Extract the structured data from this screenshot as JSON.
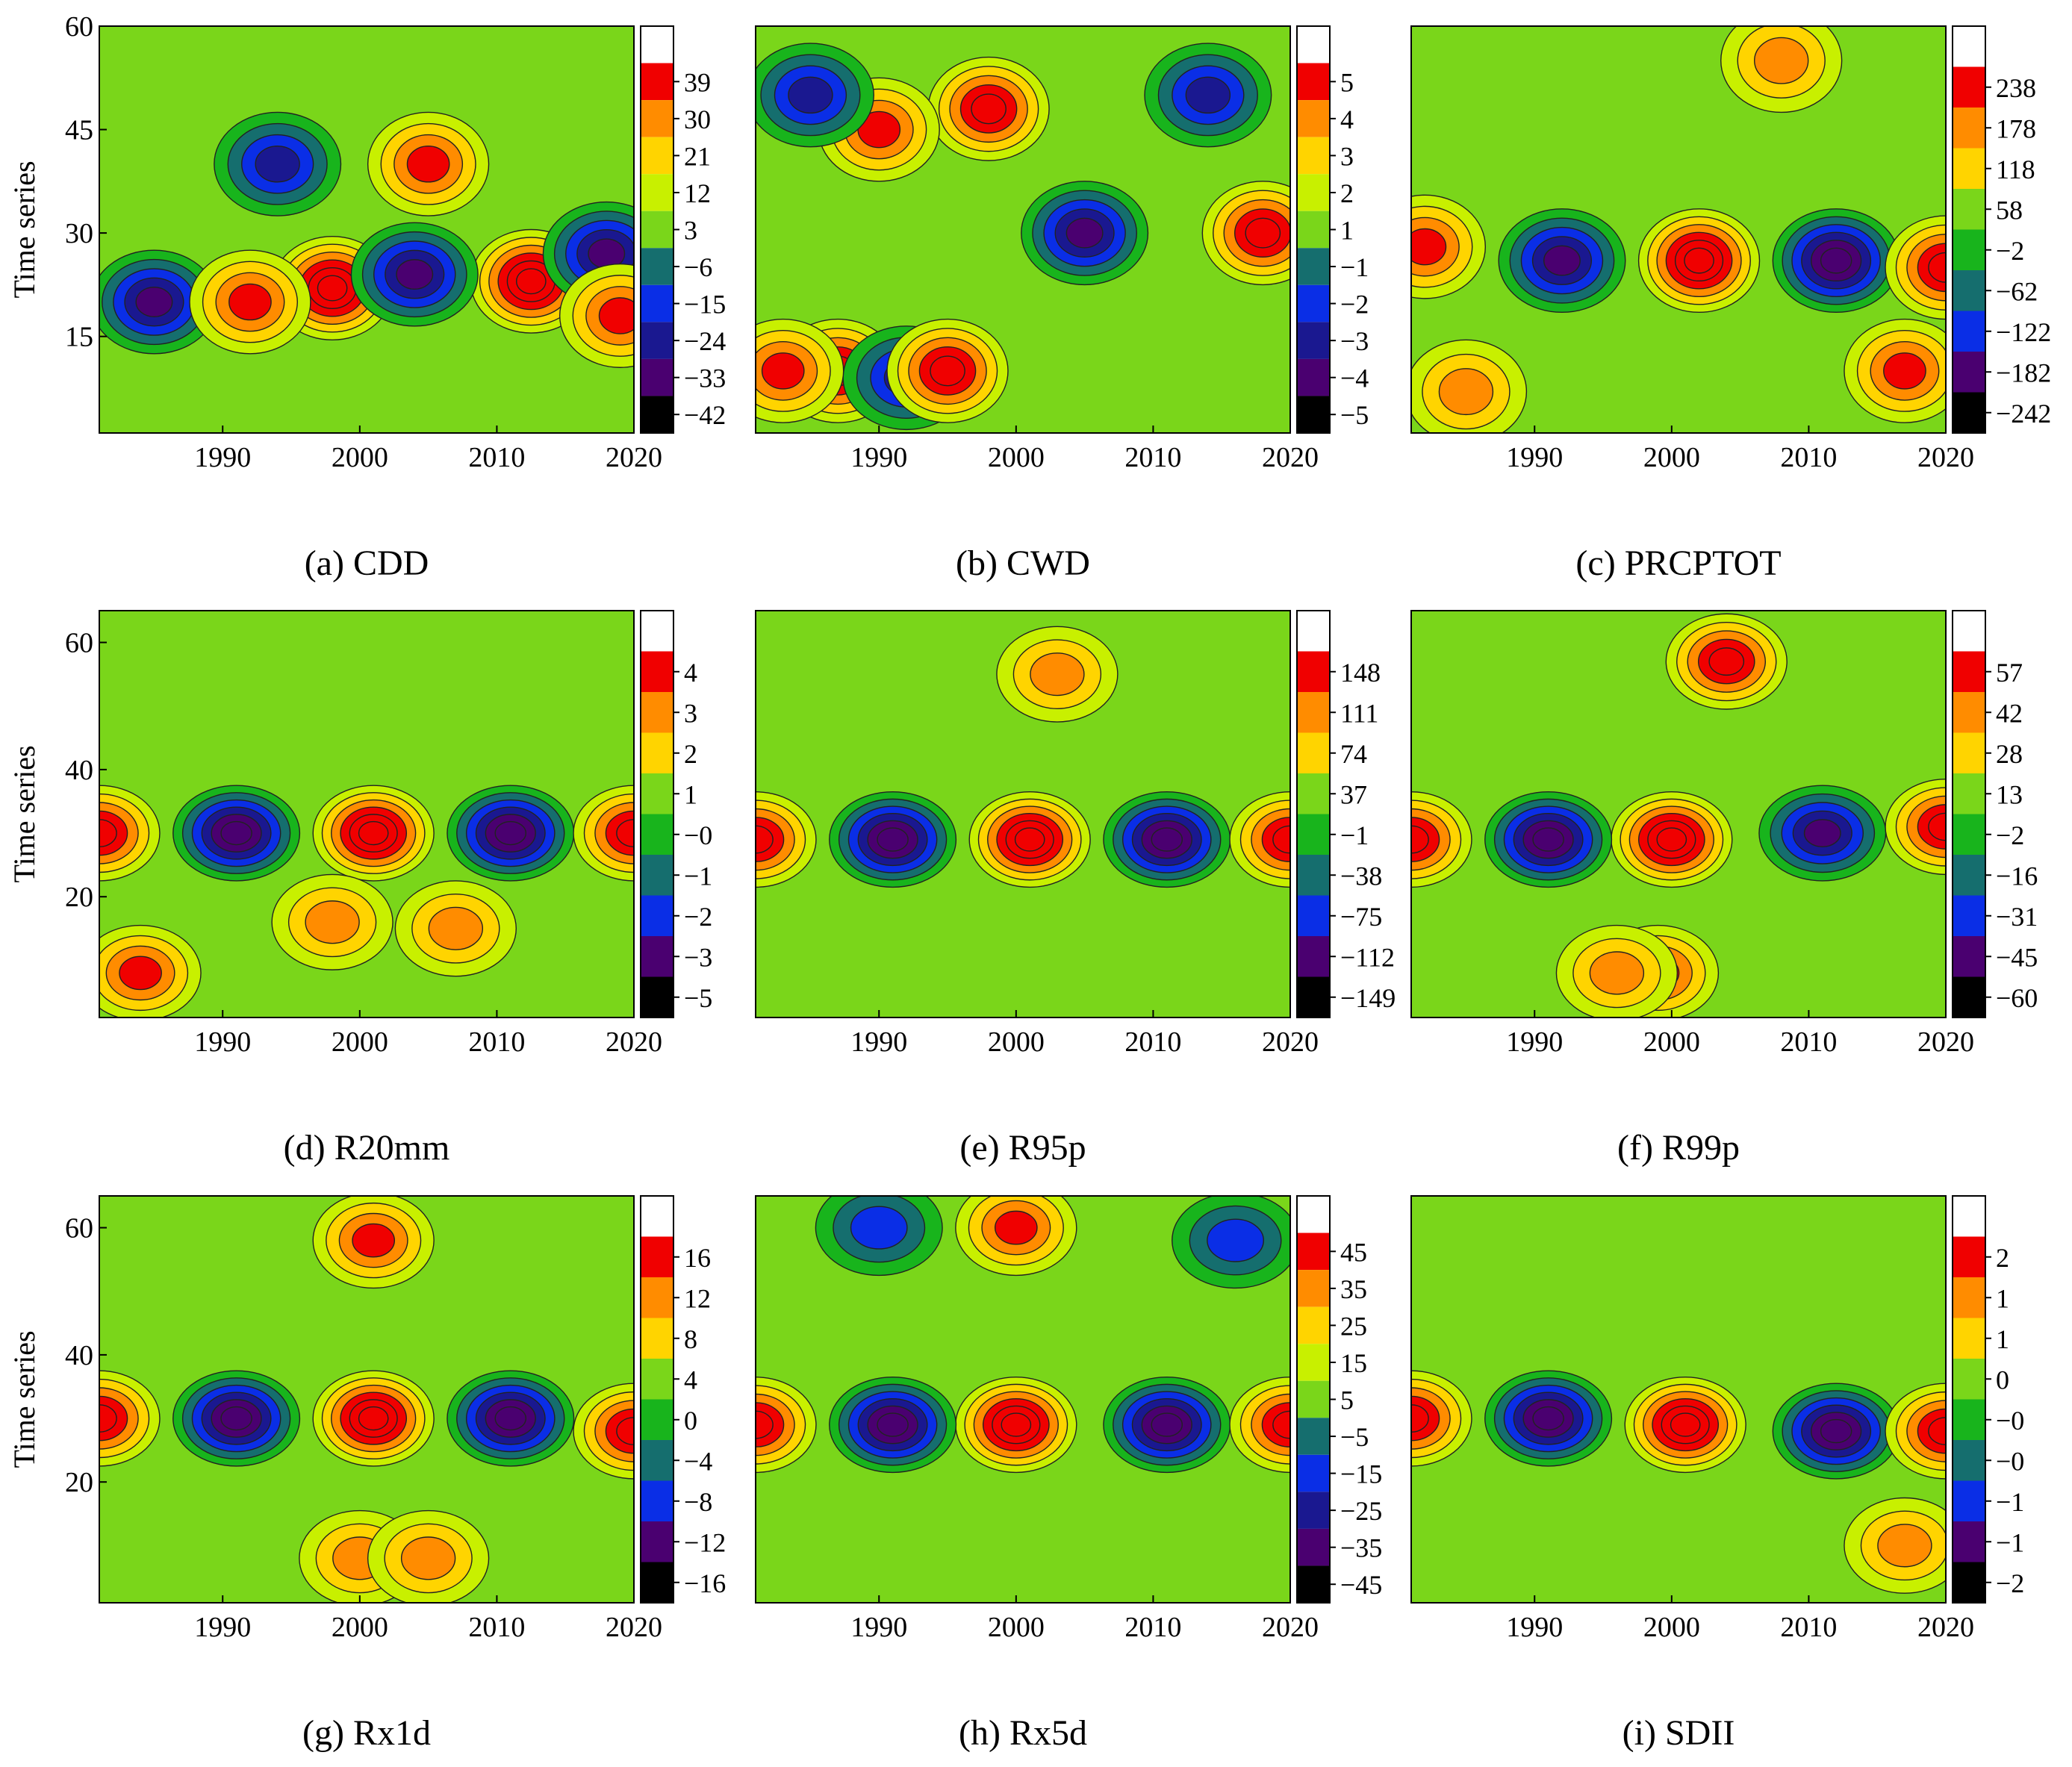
{
  "figure": {
    "ylabel": "Time series",
    "palette": [
      "#000000",
      "#4a0070",
      "#1a1890",
      "#0a2ee6",
      "#156e6e",
      "#18b41c",
      "#7ad61a",
      "#c8f000",
      "#ffd400",
      "#ff8c00",
      "#f00000",
      "#ffffff"
    ]
  },
  "chart_data": [
    {
      "type": "heatmap",
      "title": "(a) CDD",
      "xlabel": "",
      "ylabel": "Time series",
      "xlim": [
        1981,
        2020
      ],
      "ylim": [
        1,
        60
      ],
      "xticks": [
        "1990",
        "2000",
        "2010",
        "2020"
      ],
      "yticks": [
        "15",
        "30",
        "45",
        "60"
      ],
      "colorbar": [
        "39",
        "30",
        "21",
        "12",
        "3",
        "−6",
        "−15",
        "−24",
        "−33",
        "−42"
      ],
      "centers": [
        [
          1998,
          22,
          1,
          6
        ],
        [
          2012.5,
          23,
          1,
          6
        ],
        [
          2004,
          24,
          -1,
          5
        ],
        [
          1985,
          20,
          -1,
          5
        ],
        [
          1992,
          20,
          1,
          4
        ],
        [
          2005,
          40,
          1,
          4
        ],
        [
          1994,
          40,
          -1,
          4
        ],
        [
          2018,
          27,
          -1,
          5
        ],
        [
          2019,
          18,
          1,
          4
        ]
      ]
    },
    {
      "type": "heatmap",
      "title": "(b) CWD",
      "xlabel": "",
      "ylabel": "",
      "xlim": [
        1981,
        2020
      ],
      "ylim": [
        1,
        60
      ],
      "xticks": [
        "1990",
        "2000",
        "2010",
        "2020"
      ],
      "yticks": [],
      "colorbar": [
        "5",
        "4",
        "3",
        "2",
        "1",
        "−1",
        "−2",
        "−3",
        "−4",
        "−5"
      ],
      "centers": [
        [
          1987,
          10,
          1,
          5
        ],
        [
          1992,
          9,
          -1,
          4
        ],
        [
          1995,
          10,
          1,
          5
        ],
        [
          1983,
          10,
          1,
          4
        ],
        [
          1998,
          48,
          1,
          5
        ],
        [
          1990,
          45,
          1,
          4
        ],
        [
          2005,
          30,
          -1,
          5
        ],
        [
          2018,
          30,
          1,
          5
        ],
        [
          1985,
          50,
          -1,
          4
        ],
        [
          2014,
          50,
          -1,
          4
        ]
      ]
    },
    {
      "type": "heatmap",
      "title": "(c) PRCPTOT",
      "xlabel": "",
      "ylabel": "",
      "xlim": [
        1981,
        2020
      ],
      "ylim": [
        1,
        60
      ],
      "xticks": [
        "1990",
        "2000",
        "2010",
        "2020"
      ],
      "yticks": [],
      "colorbar": [
        "238",
        "178",
        "118",
        "58",
        "−2",
        "−62",
        "−122",
        "−182",
        "−242"
      ],
      "centers": [
        [
          2002,
          26,
          1,
          6
        ],
        [
          2012,
          26,
          -1,
          6
        ],
        [
          1992,
          26,
          -1,
          5
        ],
        [
          1982,
          28,
          1,
          4
        ],
        [
          2020,
          25,
          1,
          5
        ],
        [
          2017,
          10,
          1,
          4
        ],
        [
          1985,
          7,
          1,
          3
        ],
        [
          2008,
          55,
          1,
          3
        ]
      ]
    },
    {
      "type": "heatmap",
      "title": "(d) R20mm",
      "xlabel": "",
      "ylabel": "Time series",
      "xlim": [
        1981,
        2020
      ],
      "ylim": [
        1,
        65
      ],
      "xticks": [
        "1990",
        "2000",
        "2010",
        "2020"
      ],
      "yticks": [
        "20",
        "40",
        "60"
      ],
      "colorbar": [
        "4",
        "3",
        "2",
        "1",
        "−0",
        "−1",
        "−2",
        "−3",
        "−5"
      ],
      "centers": [
        [
          2001,
          30,
          1,
          6
        ],
        [
          1991,
          30,
          -1,
          6
        ],
        [
          2011,
          30,
          -1,
          6
        ],
        [
          1981,
          30,
          1,
          5
        ],
        [
          2020,
          30,
          1,
          5
        ],
        [
          1984,
          8,
          1,
          4
        ],
        [
          1998,
          16,
          1,
          3
        ],
        [
          2007,
          15,
          1,
          3
        ]
      ]
    },
    {
      "type": "heatmap",
      "title": "(e) R95p",
      "xlabel": "",
      "ylabel": "",
      "xlim": [
        1981,
        2020
      ],
      "ylim": [
        1,
        65
      ],
      "xticks": [
        "1990",
        "2000",
        "2010",
        "2020"
      ],
      "yticks": [],
      "colorbar": [
        "148",
        "111",
        "74",
        "37",
        "−1",
        "−38",
        "−75",
        "−112",
        "−149"
      ],
      "centers": [
        [
          2001,
          29,
          1,
          6
        ],
        [
          1991,
          29,
          -1,
          6
        ],
        [
          2011,
          29,
          -1,
          6
        ],
        [
          1981,
          29,
          1,
          5
        ],
        [
          2020,
          29,
          1,
          5
        ],
        [
          2003,
          55,
          1,
          3
        ]
      ]
    },
    {
      "type": "heatmap",
      "title": "(f) R99p",
      "xlabel": "",
      "ylabel": "",
      "xlim": [
        1981,
        2020
      ],
      "ylim": [
        1,
        65
      ],
      "xticks": [
        "1990",
        "2000",
        "2010",
        "2020"
      ],
      "yticks": [],
      "colorbar": [
        "57",
        "42",
        "28",
        "13",
        "−2",
        "−16",
        "−31",
        "−45",
        "−60"
      ],
      "centers": [
        [
          2000,
          29,
          1,
          6
        ],
        [
          1991,
          29,
          -1,
          6
        ],
        [
          2011,
          30,
          -1,
          5
        ],
        [
          1981,
          29,
          1,
          5
        ],
        [
          2020,
          31,
          1,
          5
        ],
        [
          2004,
          57,
          1,
          5
        ],
        [
          1999,
          8,
          1,
          4
        ],
        [
          1996,
          8,
          1,
          3
        ]
      ]
    },
    {
      "type": "heatmap",
      "title": "(g) Rx1d",
      "xlabel": "",
      "ylabel": "Time series",
      "xlim": [
        1981,
        2020
      ],
      "ylim": [
        1,
        65
      ],
      "xticks": [
        "1990",
        "2000",
        "2010",
        "2020"
      ],
      "yticks": [
        "20",
        "40",
        "60"
      ],
      "colorbar": [
        "16",
        "12",
        "8",
        "4",
        "0",
        "−4",
        "−8",
        "−12",
        "−16"
      ],
      "centers": [
        [
          2001,
          30,
          1,
          6
        ],
        [
          1991,
          30,
          -1,
          6
        ],
        [
          2011,
          30,
          -1,
          6
        ],
        [
          1981,
          30,
          1,
          5
        ],
        [
          2020,
          28,
          1,
          5
        ],
        [
          2001,
          58,
          1,
          4
        ],
        [
          2000,
          8,
          1,
          3
        ],
        [
          2005,
          8,
          1,
          3
        ]
      ]
    },
    {
      "type": "heatmap",
      "title": "(h) Rx5d",
      "xlabel": "",
      "ylabel": "",
      "xlim": [
        1981,
        2020
      ],
      "ylim": [
        1,
        65
      ],
      "xticks": [
        "1990",
        "2000",
        "2010",
        "2020"
      ],
      "yticks": [],
      "colorbar": [
        "45",
        "35",
        "25",
        "15",
        "5",
        "−5",
        "−15",
        "−25",
        "−35",
        "−45"
      ],
      "centers": [
        [
          2000,
          29,
          1,
          6
        ],
        [
          1991,
          29,
          -1,
          6
        ],
        [
          2011,
          29,
          -1,
          6
        ],
        [
          1981,
          29,
          1,
          5
        ],
        [
          2020,
          29,
          1,
          5
        ],
        [
          2000,
          60,
          1,
          4
        ],
        [
          1990,
          60,
          -1,
          3
        ],
        [
          2016,
          58,
          -1,
          3
        ]
      ]
    },
    {
      "type": "heatmap",
      "title": "(i) SDII",
      "xlabel": "",
      "ylabel": "",
      "xlim": [
        1981,
        2020
      ],
      "ylim": [
        1,
        65
      ],
      "xticks": [
        "1990",
        "2000",
        "2010",
        "2020"
      ],
      "yticks": [],
      "colorbar": [
        "2",
        "1",
        "1",
        "0",
        "−0",
        "−0",
        "−1",
        "−1",
        "−2"
      ],
      "centers": [
        [
          2001,
          29,
          1,
          6
        ],
        [
          1991,
          30,
          -1,
          6
        ],
        [
          2012,
          28,
          -1,
          6
        ],
        [
          1981,
          30,
          1,
          5
        ],
        [
          2020,
          28,
          1,
          5
        ],
        [
          2017,
          10,
          1,
          3
        ]
      ]
    }
  ]
}
